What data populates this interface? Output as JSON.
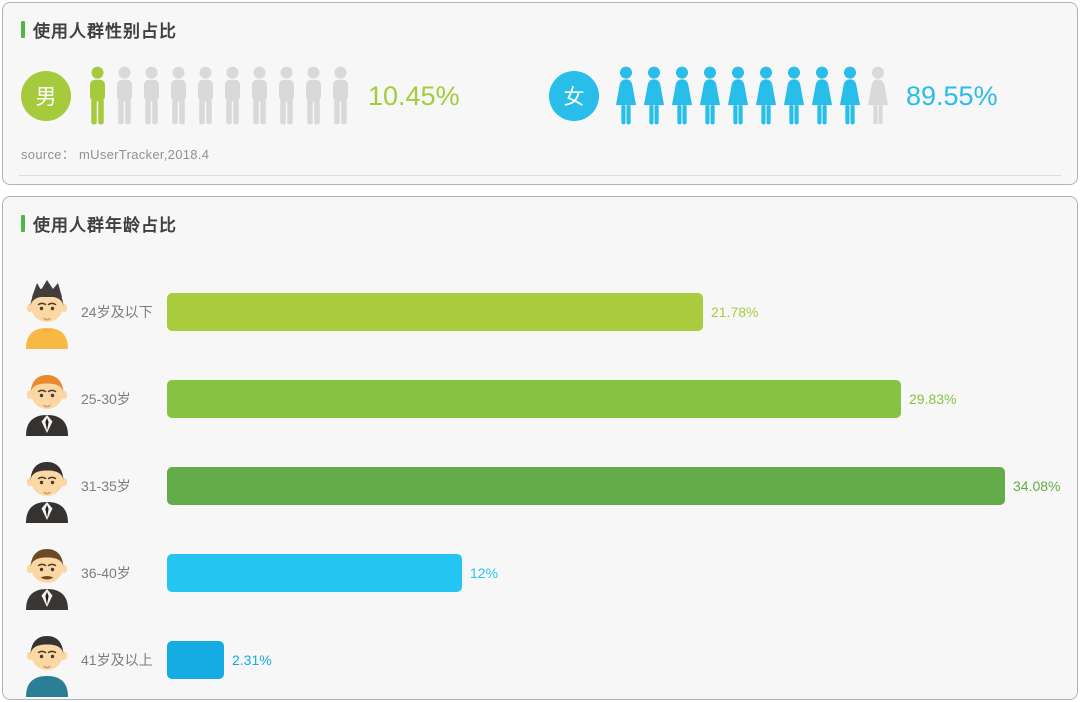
{
  "gender_panel": {
    "title": "使用人群性别占比",
    "male_badge": "男",
    "female_badge": "女",
    "male_pct": "10.45%",
    "female_pct": "89.55%",
    "source_label": "source： mUserTracker,2018.4"
  },
  "age_panel": {
    "title": "使用人群年龄占比"
  },
  "colors": {
    "accent_green": "#52b44a",
    "icon_empty": "#d9d9d9",
    "male_green": "#a5cb3c",
    "female_blue": "#29bde9",
    "panel_bg": "#f7f7f7",
    "panel_border": "#b3b3b3"
  },
  "chart_data": [
    {
      "type": "bar",
      "title": "使用人群性别占比",
      "categories": [
        "男",
        "女"
      ],
      "values": [
        10.45,
        89.55
      ],
      "labels": [
        "10.45%",
        "89.55%"
      ],
      "colors": [
        "#a5cb3c",
        "#29bde9"
      ],
      "unit": "%",
      "pictogram": {
        "total_icons": 10,
        "filled": [
          1,
          9
        ]
      },
      "source": "source： mUserTracker,2018.4",
      "legend_position": "none",
      "grid": false
    },
    {
      "type": "bar",
      "orientation": "horizontal",
      "title": "使用人群年龄占比",
      "categories": [
        "24岁及以下",
        "25-30岁",
        "31-35岁",
        "36-40岁",
        "41岁及以上"
      ],
      "values": [
        21.78,
        29.83,
        34.08,
        12,
        2.31
      ],
      "labels": [
        "21.78%",
        "29.83%",
        "34.08%",
        "12%",
        "2.31%"
      ],
      "colors": [
        "#a9cb3e",
        "#86c343",
        "#63ac49",
        "#25c5f1",
        "#15ace4"
      ],
      "unit": "%",
      "xlim": [
        0,
        35
      ],
      "grid": false,
      "avatars": [
        {
          "name": "avatar-youth-spiky-hair-yellow-tee",
          "hair": "#413d3a",
          "shirt": "#f7b844",
          "style": "tee",
          "spiky": true,
          "mustache": false
        },
        {
          "name": "avatar-orange-hair-black-suit",
          "hair": "#e98b2d",
          "shirt": "#35322f",
          "style": "suit",
          "spiky": false,
          "mustache": false
        },
        {
          "name": "avatar-black-hair-black-suit",
          "hair": "#35322f",
          "shirt": "#35322f",
          "style": "suit",
          "spiky": false,
          "mustache": false
        },
        {
          "name": "avatar-brown-hair-mustache-suit",
          "hair": "#6d4a26",
          "shirt": "#3a3733",
          "style": "suit",
          "spiky": false,
          "mustache": true
        },
        {
          "name": "avatar-black-hair-teal-tee",
          "hair": "#35322f",
          "shirt": "#2b7e95",
          "style": "tee",
          "spiky": false,
          "mustache": false
        }
      ]
    }
  ]
}
